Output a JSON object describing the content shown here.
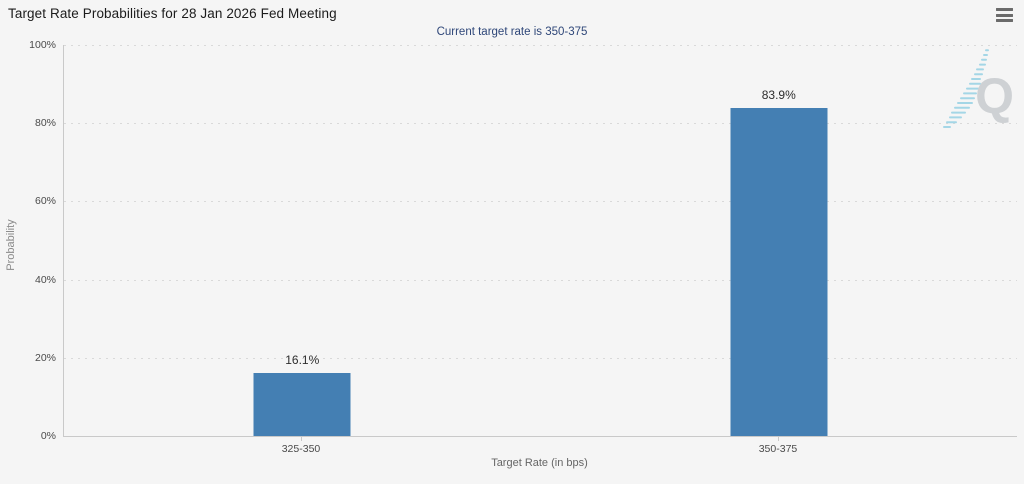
{
  "title": "Target Rate Probabilities for 28 Jan 2026 Fed Meeting",
  "subtitle": "Current target rate is 350-375",
  "watermark_letter": "Q",
  "icons": {
    "menu": "hamburger-menu-icon",
    "watermark": "quikstrike-q-logo"
  },
  "colors": {
    "background": "#f5f5f5",
    "bar": "#447fb3",
    "subtitle_text": "#2f4779",
    "axis_line": "#c9c9c9",
    "gridline": "#d9d9d9",
    "watermark_q": "#ced1d4",
    "watermark_swoosh": "#a4d6e6"
  },
  "chart_data": {
    "type": "bar",
    "title": "Target Rate Probabilities for 28 Jan 2026 Fed Meeting",
    "subtitle": "Current target rate is 350-375",
    "categories": [
      "325-350",
      "350-375"
    ],
    "values": [
      16.1,
      83.9
    ],
    "value_labels": [
      "16.1%",
      "83.9%"
    ],
    "xlabel": "Target Rate (in bps)",
    "ylabel": "Probability",
    "ylim": [
      0,
      100
    ],
    "ytick_labels": [
      "100%",
      "80%",
      "60%",
      "40%",
      "20%",
      "0%"
    ],
    "grid": "dotted-horizontal",
    "legend_position": "none",
    "bar_color_hex": "#447fb3"
  }
}
